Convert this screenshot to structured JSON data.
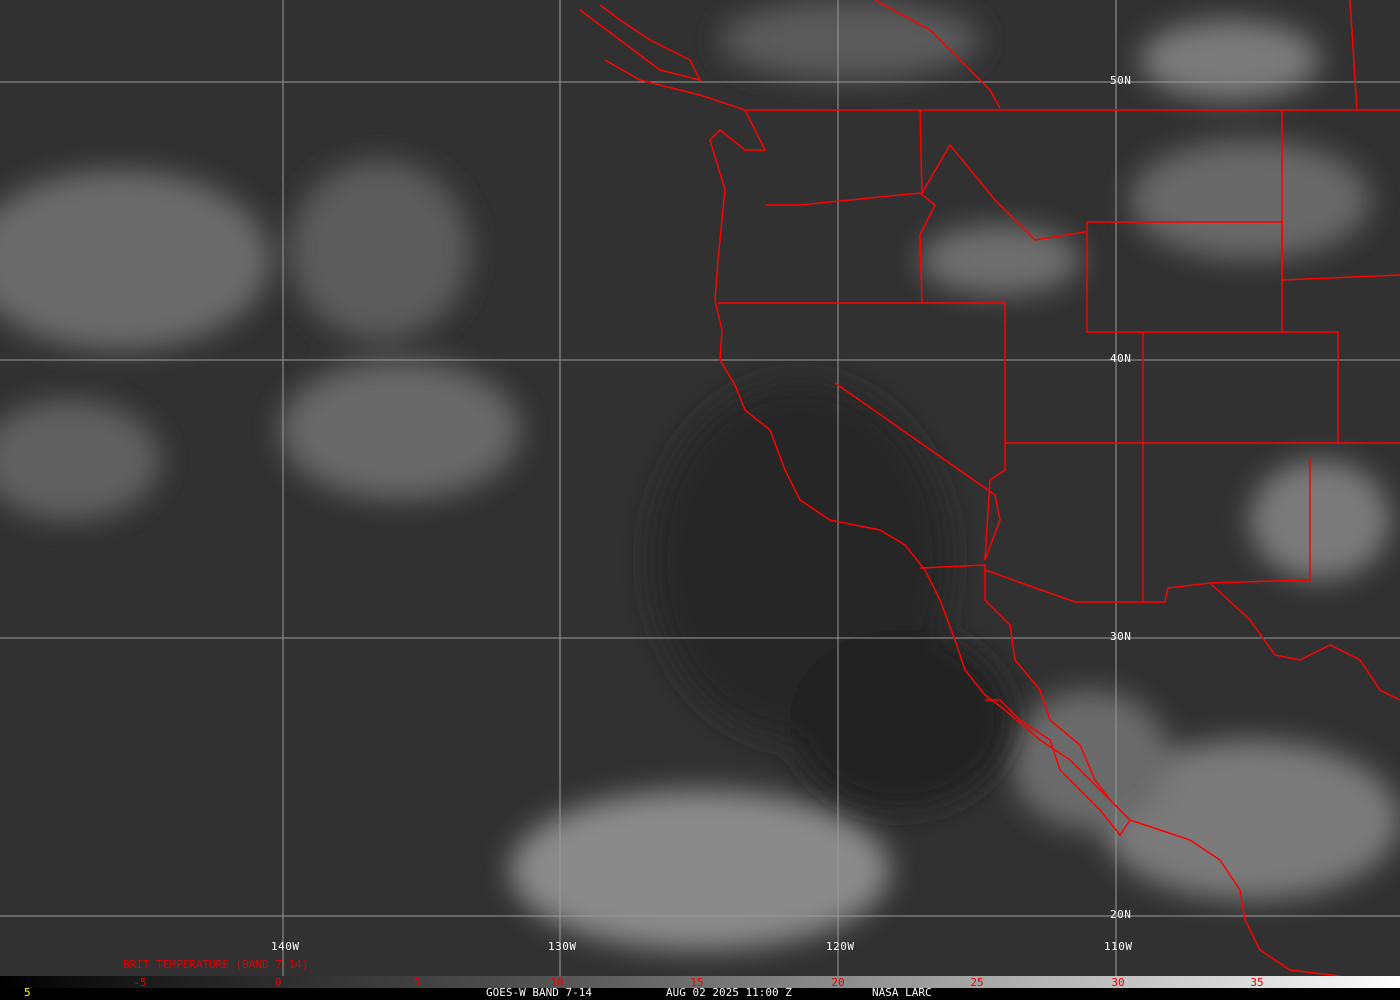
{
  "image": {
    "satellite": "GOES-W",
    "band": "BAND 7-14",
    "footer_text": "GOES-W BAND 7-14",
    "datetime": "AUG 02 2025 11:00 Z",
    "source": "NASA LARC",
    "corner_value": "5"
  },
  "grid": {
    "longitude_labels": [
      "140W",
      "130W",
      "120W",
      "110W"
    ],
    "latitude_labels": [
      "50N",
      "40N",
      "30N",
      "20N"
    ]
  },
  "colorbar": {
    "title": "BRIT TEMPERATURE (BAND 7-14)",
    "ticks": [
      "-5",
      "0",
      "5",
      "10",
      "15",
      "20",
      "25",
      "30",
      "35"
    ],
    "colors": {
      "low": "#000000",
      "high": "#ffffff",
      "label": "#ff0000"
    }
  },
  "colors": {
    "boundaries": "#ff0000",
    "grid": "#9a9a9a",
    "background": "#2e2e2e"
  }
}
